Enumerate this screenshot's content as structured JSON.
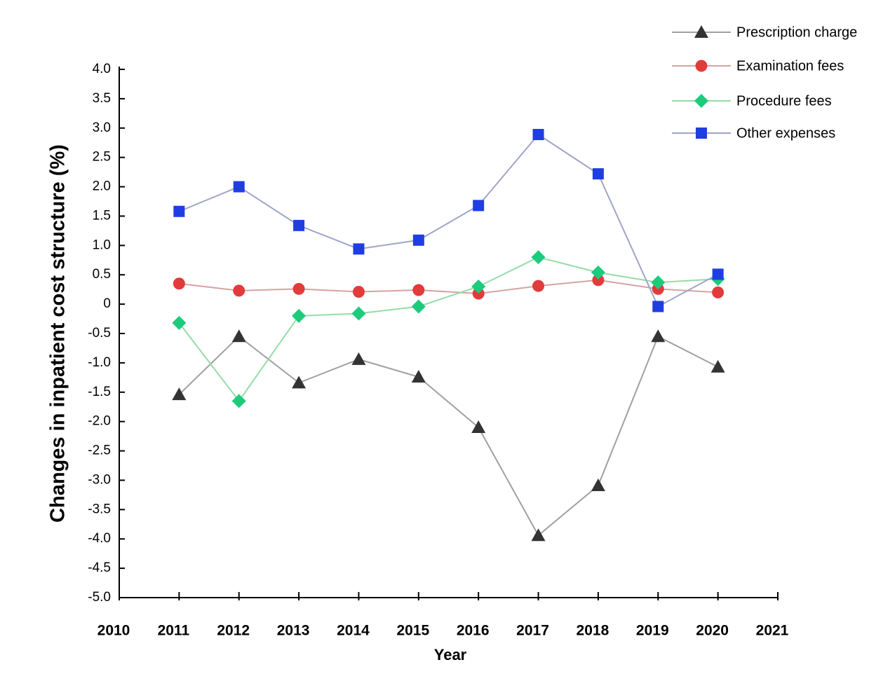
{
  "chart_data": {
    "type": "line",
    "x_label": "Year",
    "y_label": "Changes in inpatient cost structure (%)",
    "x": [
      2011,
      2012,
      2013,
      2014,
      2015,
      2016,
      2017,
      2018,
      2019,
      2020
    ],
    "xlim": [
      2010,
      2021
    ],
    "xticks": [
      2010,
      2011,
      2012,
      2013,
      2014,
      2015,
      2016,
      2017,
      2018,
      2019,
      2020,
      2021
    ],
    "ylim": [
      -5,
      4
    ],
    "yticks": [
      {
        "value": 4,
        "label": "4.0"
      },
      3.5,
      {
        "value": 3,
        "label": "3.0"
      },
      2.5,
      {
        "value": 2,
        "label": "2.0"
      },
      1.5,
      {
        "value": 1,
        "label": "1.0"
      },
      0.5,
      0,
      -0.5,
      {
        "value": -1,
        "label": "-1.0"
      },
      -1.5,
      {
        "value": -2,
        "label": "-2.0"
      },
      -2.5,
      {
        "value": -3,
        "label": "-3.0"
      },
      -3.5,
      {
        "value": -4,
        "label": "-4.0"
      },
      -4.5,
      {
        "value": -5,
        "label": "-5.0"
      }
    ],
    "legend": "top-right",
    "series": [
      {
        "name": "Prescription charge",
        "marker": "triangle",
        "color": "#333333",
        "line_color": "#a0a0a0",
        "values": [
          -1.54,
          -0.55,
          -1.34,
          -0.94,
          -1.24,
          -2.1,
          -3.94,
          -3.09,
          -0.55,
          -1.07
        ]
      },
      {
        "name": "Examination fees",
        "marker": "circle",
        "color": "#e23b3b",
        "line_color": "#d8a2a2",
        "values": [
          0.35,
          0.23,
          0.26,
          0.21,
          0.24,
          0.18,
          0.31,
          0.41,
          0.26,
          0.2
        ]
      },
      {
        "name": "Procedure fees",
        "marker": "diamond",
        "color": "#1ccb7c",
        "line_color": "#95dca6",
        "values": [
          -0.32,
          -1.65,
          -0.2,
          -0.16,
          -0.04,
          0.3,
          0.8,
          0.54,
          0.37,
          0.43
        ]
      },
      {
        "name": "Other expenses",
        "marker": "square",
        "color": "#1f3ee2",
        "line_color": "#a0a4c8",
        "values": [
          1.58,
          2.0,
          1.34,
          0.94,
          1.09,
          1.68,
          2.89,
          2.22,
          -0.04,
          0.51
        ]
      }
    ]
  }
}
